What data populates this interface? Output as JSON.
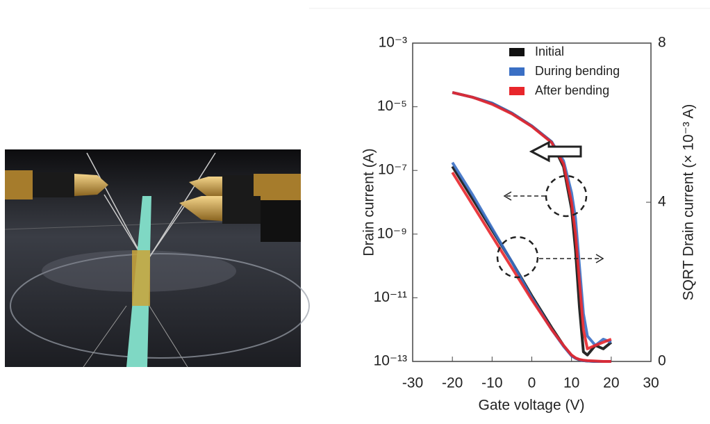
{
  "chart_data": {
    "type": "line",
    "xlabel": "Gate voltage (V)",
    "ylabel": "Drain current (A)",
    "y2label": "SQRT Drain current (× 10⁻³ A)",
    "xlim": [
      -30,
      30
    ],
    "xticks": [
      -30,
      -20,
      -10,
      0,
      10,
      20,
      30
    ],
    "ylim": [
      1e-13,
      0.001
    ],
    "ylog": true,
    "yticks": [
      {
        "value": 0.001,
        "label": "10⁻³"
      },
      {
        "value": 1e-05,
        "label": "10⁻⁵"
      },
      {
        "value": 1e-07,
        "label": "10⁻⁷"
      },
      {
        "value": 1e-09,
        "label": "10⁻⁹"
      },
      {
        "value": 1e-11,
        "label": "10⁻¹¹"
      },
      {
        "value": 1e-13,
        "label": "10⁻¹³"
      }
    ],
    "y2lim": [
      0,
      8
    ],
    "y2ticks": [
      0,
      4,
      8
    ],
    "x": [
      -20,
      -15,
      -10,
      -5,
      0,
      5,
      8,
      10,
      11,
      12,
      13,
      14,
      16,
      18,
      20
    ],
    "series": [
      {
        "name": "Initial",
        "color": "#111111",
        "values": [
          2.8e-05,
          2e-05,
          1.3e-05,
          6.3e-06,
          2.5e-06,
          7.9e-07,
          1.3e-07,
          6.3e-09,
          3.2e-10,
          5e-12,
          2e-13,
          1.6e-13,
          3.2e-13,
          2.5e-13,
          4e-13
        ],
        "y2_values": [
          4.9,
          4.1,
          3.3,
          2.5,
          1.65,
          0.85,
          0.4,
          0.15,
          0.08,
          0.04,
          0.02,
          0.01,
          0,
          0,
          0
        ]
      },
      {
        "name": "During bending",
        "color": "#3a6fc4",
        "values": [
          2.8e-05,
          2e-05,
          1.3e-05,
          6.3e-06,
          2.5e-06,
          7.9e-07,
          2e-07,
          2e-08,
          3.2e-09,
          1e-10,
          3.2e-12,
          6.3e-13,
          3.2e-13,
          5e-13,
          4e-13
        ],
        "y2_values": [
          5.0,
          4.2,
          3.35,
          2.5,
          1.6,
          0.8,
          0.38,
          0.14,
          0.08,
          0.04,
          0.02,
          0.01,
          0,
          0,
          0
        ]
      },
      {
        "name": "After bending",
        "color": "#e8262b",
        "values": [
          2.8e-05,
          2e-05,
          1.2e-05,
          6e-06,
          2.4e-06,
          7.5e-07,
          1.6e-07,
          1e-08,
          1e-09,
          3.2e-11,
          1e-12,
          2.5e-13,
          3.2e-13,
          4e-13,
          5e-13
        ],
        "y2_values": [
          4.75,
          3.95,
          3.15,
          2.35,
          1.55,
          0.8,
          0.4,
          0.16,
          0.09,
          0.05,
          0.03,
          0.02,
          0.01,
          0,
          0
        ]
      }
    ]
  }
}
